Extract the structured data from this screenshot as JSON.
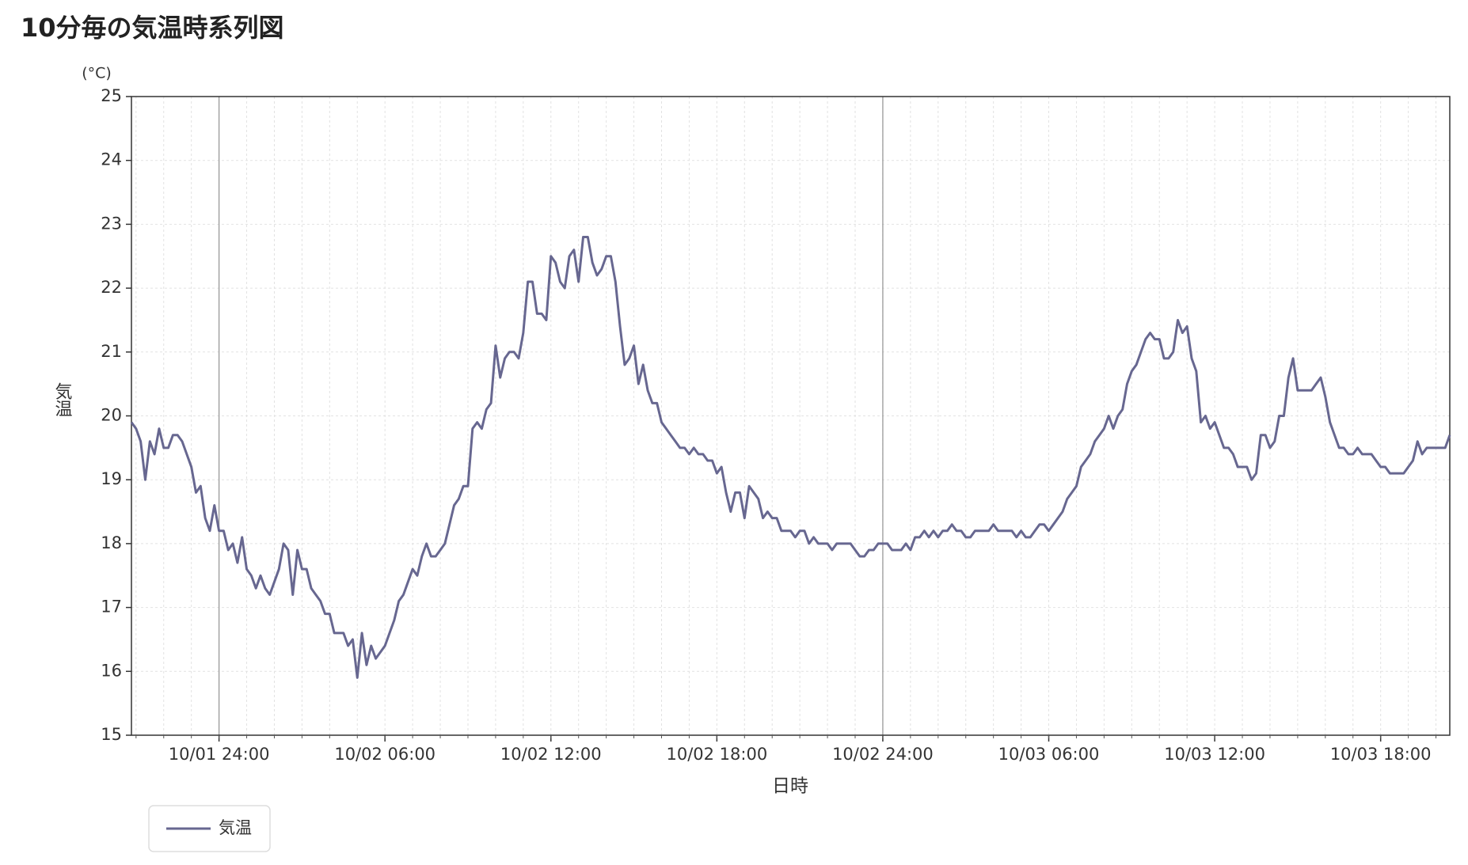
{
  "chart_data": {
    "type": "line",
    "title": "10分毎の気温時系列図",
    "y_unit": "(°C)",
    "ylabel": "気温",
    "xlabel": "日時",
    "xlim": [
      1250,
      4110
    ],
    "ylim": [
      15,
      25
    ],
    "yticks": [
      15,
      16,
      17,
      18,
      19,
      20,
      21,
      22,
      23,
      24,
      25
    ],
    "xticks": [
      {
        "value": 1440,
        "label": "10/01 24:00"
      },
      {
        "value": 1800,
        "label": "10/02 06:00"
      },
      {
        "value": 2160,
        "label": "10/02 12:00"
      },
      {
        "value": 2520,
        "label": "10/02 18:00"
      },
      {
        "value": 2880,
        "label": "10/02 24:00"
      },
      {
        "value": 3240,
        "label": "10/03 06:00"
      },
      {
        "value": 3600,
        "label": "10/03 12:00"
      },
      {
        "value": 3960,
        "label": "10/03 18:00"
      }
    ],
    "xminorticks": [
      1260,
      1320,
      1380,
      1440,
      1500,
      1560,
      1620,
      1680,
      1740,
      1800,
      1860,
      1920,
      1980,
      2040,
      2100,
      2160,
      2220,
      2280,
      2340,
      2400,
      2460,
      2520,
      2580,
      2640,
      2700,
      2760,
      2820,
      2880,
      2940,
      3000,
      3060,
      3120,
      3180,
      3240,
      3300,
      3360,
      3420,
      3480,
      3540,
      3600,
      3660,
      3720,
      3780,
      3840,
      3900,
      3960,
      4020,
      4080
    ],
    "date_lines": [
      1440,
      2880
    ],
    "grid": true,
    "legend": "bottom-left",
    "x": [
      1250,
      1260,
      1270,
      1280,
      1290,
      1300,
      1310,
      1320,
      1330,
      1340,
      1350,
      1360,
      1370,
      1380,
      1390,
      1400,
      1410,
      1420,
      1430,
      1440,
      1450,
      1460,
      1470,
      1480,
      1490,
      1500,
      1510,
      1520,
      1530,
      1540,
      1550,
      1560,
      1570,
      1580,
      1590,
      1600,
      1610,
      1620,
      1630,
      1640,
      1650,
      1660,
      1670,
      1680,
      1690,
      1700,
      1710,
      1720,
      1730,
      1740,
      1750,
      1760,
      1770,
      1780,
      1790,
      1800,
      1810,
      1820,
      1830,
      1840,
      1850,
      1860,
      1870,
      1880,
      1890,
      1900,
      1910,
      1920,
      1930,
      1940,
      1950,
      1960,
      1970,
      1980,
      1990,
      2000,
      2010,
      2020,
      2030,
      2040,
      2050,
      2060,
      2070,
      2080,
      2090,
      2100,
      2110,
      2120,
      2130,
      2140,
      2150,
      2160,
      2170,
      2180,
      2190,
      2200,
      2210,
      2220,
      2230,
      2240,
      2250,
      2260,
      2270,
      2280,
      2290,
      2300,
      2310,
      2320,
      2330,
      2340,
      2350,
      2360,
      2370,
      2380,
      2390,
      2400,
      2410,
      2420,
      2430,
      2440,
      2450,
      2460,
      2470,
      2480,
      2490,
      2500,
      2510,
      2520,
      2530,
      2540,
      2550,
      2560,
      2570,
      2580,
      2590,
      2600,
      2610,
      2620,
      2630,
      2640,
      2650,
      2660,
      2670,
      2680,
      2690,
      2700,
      2710,
      2720,
      2730,
      2740,
      2750,
      2760,
      2770,
      2780,
      2790,
      2800,
      2810,
      2820,
      2830,
      2840,
      2850,
      2860,
      2870,
      2880,
      2890,
      2900,
      2910,
      2920,
      2930,
      2940,
      2950,
      2960,
      2970,
      2980,
      2990,
      3000,
      3010,
      3020,
      3030,
      3040,
      3050,
      3060,
      3070,
      3080,
      3090,
      3100,
      3110,
      3120,
      3130,
      3140,
      3150,
      3160,
      3170,
      3180,
      3190,
      3200,
      3210,
      3220,
      3230,
      3240,
      3250,
      3260,
      3270,
      3280,
      3290,
      3300,
      3310,
      3320,
      3330,
      3340,
      3350,
      3360,
      3370,
      3380,
      3390,
      3400,
      3410,
      3420,
      3430,
      3440,
      3450,
      3460,
      3470,
      3480,
      3490,
      3500,
      3510,
      3520,
      3530,
      3540,
      3550,
      3560,
      3570,
      3580,
      3590,
      3600,
      3610,
      3620,
      3630,
      3640,
      3650,
      3660,
      3670,
      3680,
      3690,
      3700,
      3710,
      3720,
      3730,
      3740,
      3750,
      3760,
      3770,
      3780,
      3790,
      3800,
      3810,
      3820,
      3830,
      3840,
      3850,
      3860,
      3870,
      3880,
      3890,
      3900,
      3910,
      3920,
      3930,
      3940,
      3950,
      3960,
      3970,
      3980,
      3990,
      4000,
      4010,
      4020,
      4030,
      4040,
      4050,
      4060,
      4070,
      4080,
      4090,
      4100,
      4110
    ],
    "series": [
      {
        "name": "気温",
        "color": "#676790",
        "values": [
          19.9,
          19.8,
          19.6,
          19.0,
          19.6,
          19.4,
          19.8,
          19.5,
          19.5,
          19.7,
          19.7,
          19.6,
          19.4,
          19.2,
          18.8,
          18.9,
          18.4,
          18.2,
          18.6,
          18.2,
          18.2,
          17.9,
          18.0,
          17.7,
          18.1,
          17.6,
          17.5,
          17.3,
          17.5,
          17.3,
          17.2,
          17.4,
          17.6,
          18.0,
          17.9,
          17.2,
          17.9,
          17.6,
          17.6,
          17.3,
          17.2,
          17.1,
          16.9,
          16.9,
          16.6,
          16.6,
          16.6,
          16.4,
          16.5,
          15.9,
          16.6,
          16.1,
          16.4,
          16.2,
          16.3,
          16.4,
          16.6,
          16.8,
          17.1,
          17.2,
          17.4,
          17.6,
          17.5,
          17.8,
          18.0,
          17.8,
          17.8,
          17.9,
          18.0,
          18.3,
          18.6,
          18.7,
          18.9,
          18.9,
          19.8,
          19.9,
          19.8,
          20.1,
          20.2,
          21.1,
          20.6,
          20.9,
          21.0,
          21.0,
          20.9,
          21.3,
          22.1,
          22.1,
          21.6,
          21.6,
          21.5,
          22.5,
          22.4,
          22.1,
          22.0,
          22.5,
          22.6,
          22.1,
          22.8,
          22.8,
          22.4,
          22.2,
          22.3,
          22.5,
          22.5,
          22.1,
          21.4,
          20.8,
          20.9,
          21.1,
          20.5,
          20.8,
          20.4,
          20.2,
          20.2,
          19.9,
          19.8,
          19.7,
          19.6,
          19.5,
          19.5,
          19.4,
          19.5,
          19.4,
          19.4,
          19.3,
          19.3,
          19.1,
          19.2,
          18.8,
          18.5,
          18.8,
          18.8,
          18.4,
          18.9,
          18.8,
          18.7,
          18.4,
          18.5,
          18.4,
          18.4,
          18.2,
          18.2,
          18.2,
          18.1,
          18.2,
          18.2,
          18.0,
          18.1,
          18.0,
          18.0,
          18.0,
          17.9,
          18.0,
          18.0,
          18.0,
          18.0,
          17.9,
          17.8,
          17.8,
          17.9,
          17.9,
          18.0,
          18.0,
          18.0,
          17.9,
          17.9,
          17.9,
          18.0,
          17.9,
          18.1,
          18.1,
          18.2,
          18.1,
          18.2,
          18.1,
          18.2,
          18.2,
          18.3,
          18.2,
          18.2,
          18.1,
          18.1,
          18.2,
          18.2,
          18.2,
          18.2,
          18.3,
          18.2,
          18.2,
          18.2,
          18.2,
          18.1,
          18.2,
          18.1,
          18.1,
          18.2,
          18.3,
          18.3,
          18.2,
          18.3,
          18.4,
          18.5,
          18.7,
          18.8,
          18.9,
          19.2,
          19.3,
          19.4,
          19.6,
          19.7,
          19.8,
          20.0,
          19.8,
          20.0,
          20.1,
          20.5,
          20.7,
          20.8,
          21.0,
          21.2,
          21.3,
          21.2,
          21.2,
          20.9,
          20.9,
          21.0,
          21.5,
          21.3,
          21.4,
          20.9,
          20.7,
          19.9,
          20.0,
          19.8,
          19.9,
          19.7,
          19.5,
          19.5,
          19.4,
          19.2,
          19.2,
          19.2,
          19.0,
          19.1,
          19.7,
          19.7,
          19.5,
          19.6,
          20.0,
          20.0,
          20.6,
          20.9,
          20.4,
          20.4,
          20.4,
          20.4,
          20.5,
          20.6,
          20.3,
          19.9,
          19.7,
          19.5,
          19.5,
          19.4,
          19.4,
          19.5,
          19.4,
          19.4,
          19.4,
          19.3,
          19.2,
          19.2,
          19.1,
          19.1,
          19.1,
          19.1,
          19.2,
          19.3,
          19.6,
          19.4,
          19.5,
          19.5,
          19.5,
          19.5,
          19.5,
          19.7
        ]
      }
    ]
  }
}
